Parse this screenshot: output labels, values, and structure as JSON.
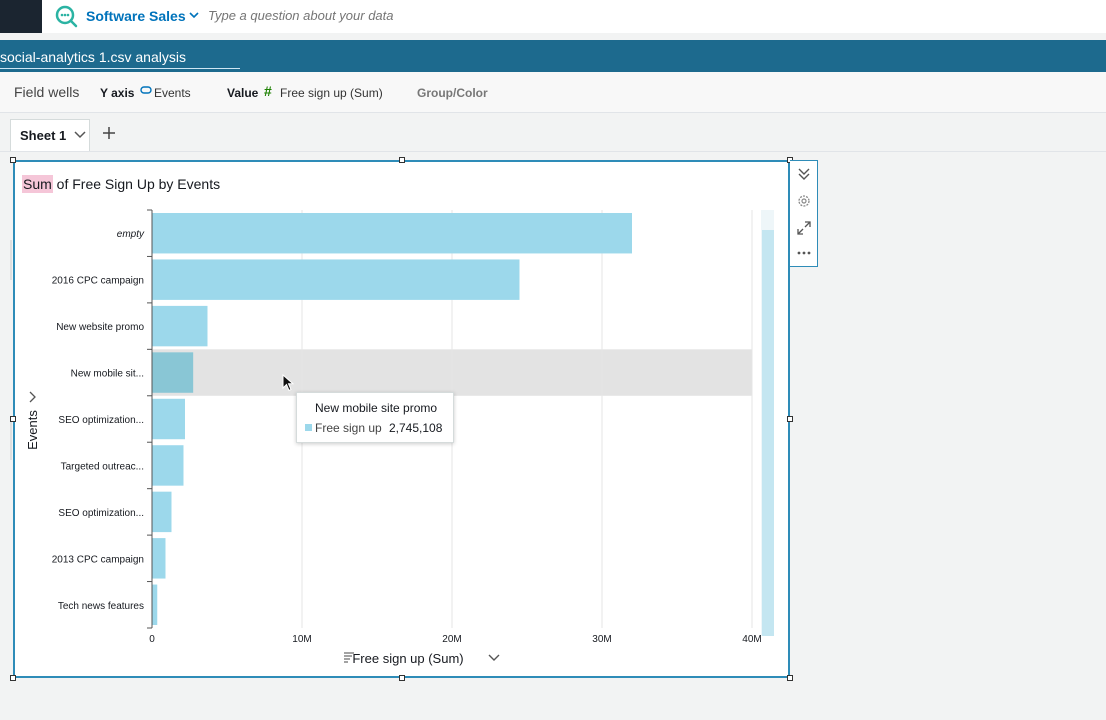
{
  "q_bar": {
    "dataset_name": "Software Sales",
    "placeholder": "Type a question about your data"
  },
  "analysis": {
    "name": "social-analytics 1.csv analysis"
  },
  "field_wells": {
    "title": "Field wells",
    "y_axis_label": "Y axis",
    "y_axis_value": "Events",
    "value_label": "Value",
    "value_value": "Free sign up (Sum)",
    "group_color_label": "Group/Color"
  },
  "sheets": {
    "active_tab": "Sheet 1"
  },
  "visual": {
    "title_highlight": "Sum",
    "title_rest": " of Free Sign Up by Events"
  },
  "tooltip": {
    "title": "New mobile site promo",
    "series_name": "Free sign up",
    "value": "2,745,108"
  },
  "colors": {
    "bar": "#9cd8eb",
    "bar_highlight": "#89c6d5",
    "accent": "#2e8cb8",
    "title_highlight": "#f5c6d8"
  },
  "chart_data": {
    "type": "bar",
    "orientation": "horizontal",
    "categories": [
      "empty",
      "2016 CPC campaign",
      "New website promo",
      "New mobile sit...",
      "SEO optimization...",
      "Targeted outreac...",
      "SEO optimization...",
      "2013 CPC campaign",
      "Tech news features"
    ],
    "values": [
      32000000,
      24500000,
      3700000,
      2745108,
      2200000,
      2100000,
      1300000,
      900000,
      350000
    ],
    "highlighted_index": 3,
    "xlabel": "Free sign up (Sum)",
    "ylabel": "Events",
    "xlim": [
      0,
      40000000
    ],
    "xticks": [
      {
        "value": 0,
        "label": "0"
      },
      {
        "value": 10000000,
        "label": "10M"
      },
      {
        "value": 20000000,
        "label": "20M"
      },
      {
        "value": 30000000,
        "label": "30M"
      },
      {
        "value": 40000000,
        "label": "40M"
      }
    ],
    "grid": true
  }
}
